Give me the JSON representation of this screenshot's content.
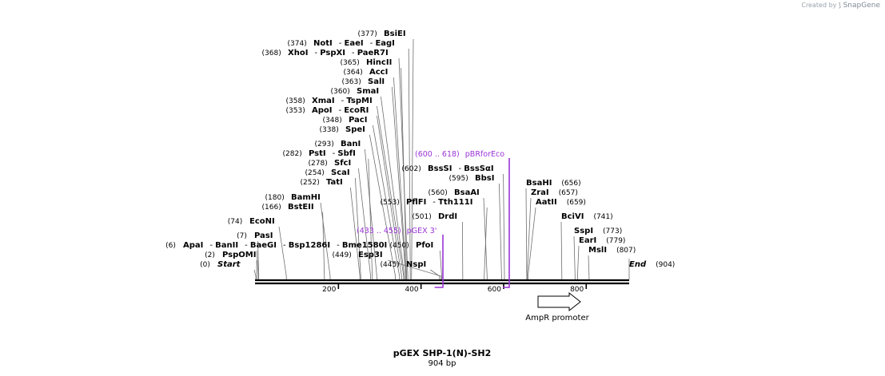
{
  "watermark": {
    "created_by": "Created by",
    "brand": "SnapGene"
  },
  "plasmid": {
    "name": "pGEX SHP-1(N)-SH2",
    "size_label": "904 bp",
    "length_bp": 904
  },
  "colors": {
    "backbone": "#000000",
    "site_line": "#6e6e6e",
    "primer": "#9a34d6",
    "feature": "#000000"
  },
  "axis_ticks": [
    {
      "label": "200",
      "bp": 200
    },
    {
      "label": "400",
      "bp": 400
    },
    {
      "label": "600",
      "bp": 600
    },
    {
      "label": "800",
      "bp": 800
    }
  ],
  "site_groups": [
    {
      "pos": "(6)",
      "pos_bp": 6,
      "enzymes": [
        "ApaI",
        "BanII",
        "BaeGI",
        "Bsp1286I",
        "Bme1580I"
      ]
    },
    {
      "pos": "(7)",
      "pos_bp": 7,
      "enzymes": [
        "PasI"
      ]
    },
    {
      "pos": "(2)",
      "pos_bp": 2,
      "enzymes": [
        "PspOMI"
      ]
    },
    {
      "pos": "(0)",
      "pos_bp": 0,
      "enzymes": [
        "Start"
      ],
      "italic": true
    },
    {
      "pos": "(74)",
      "pos_bp": 74,
      "enzymes": [
        "EcoNI"
      ]
    },
    {
      "pos": "(166)",
      "pos_bp": 166,
      "enzymes": [
        "BstEII"
      ]
    },
    {
      "pos": "(180)",
      "pos_bp": 180,
      "enzymes": [
        "BamHI"
      ]
    },
    {
      "pos": "(252)",
      "pos_bp": 252,
      "enzymes": [
        "TatI"
      ]
    },
    {
      "pos": "(254)",
      "pos_bp": 254,
      "enzymes": [
        "ScaI"
      ]
    },
    {
      "pos": "(278)",
      "pos_bp": 278,
      "enzymes": [
        "SfcI"
      ]
    },
    {
      "pos": "(282)",
      "pos_bp": 282,
      "enzymes": [
        "PstI",
        "SbfI"
      ]
    },
    {
      "pos": "(293)",
      "pos_bp": 293,
      "enzymes": [
        "BanI"
      ]
    },
    {
      "pos": "(338)",
      "pos_bp": 338,
      "enzymes": [
        "SpeI"
      ]
    },
    {
      "pos": "(348)",
      "pos_bp": 348,
      "enzymes": [
        "PacI"
      ]
    },
    {
      "pos": "(353)",
      "pos_bp": 353,
      "enzymes": [
        "ApoI",
        "EcoRI"
      ]
    },
    {
      "pos": "(358)",
      "pos_bp": 358,
      "enzymes": [
        "XmaI",
        "TspMI"
      ]
    },
    {
      "pos": "(360)",
      "pos_bp": 360,
      "enzymes": [
        "SmaI"
      ]
    },
    {
      "pos": "(363)",
      "pos_bp": 363,
      "enzymes": [
        "SalI"
      ]
    },
    {
      "pos": "(364)",
      "pos_bp": 364,
      "enzymes": [
        "AccI"
      ]
    },
    {
      "pos": "(365)",
      "pos_bp": 365,
      "enzymes": [
        "HincII"
      ]
    },
    {
      "pos": "(368)",
      "pos_bp": 368,
      "enzymes": [
        "XhoI",
        "PspXI",
        "PaeR7I"
      ]
    },
    {
      "pos": "(374)",
      "pos_bp": 374,
      "enzymes": [
        "NotI",
        "EaeI",
        "EagI"
      ]
    },
    {
      "pos": "(377)",
      "pos_bp": 377,
      "enzymes": [
        "BsiEI"
      ]
    },
    {
      "pos": "(449)",
      "pos_bp": 449,
      "enzymes": [
        "Esp3I"
      ]
    },
    {
      "pos": "(450)",
      "pos_bp": 450,
      "enzymes": [
        "PfoI"
      ]
    },
    {
      "pos": "(445)",
      "pos_bp": 445,
      "enzymes": [
        "NspI"
      ]
    },
    {
      "pos": "(501)",
      "pos_bp": 501,
      "enzymes": [
        "DrdI"
      ]
    },
    {
      "pos": "(553)",
      "pos_bp": 553,
      "enzymes": [
        "PflFI",
        "Tth111I"
      ]
    },
    {
      "pos": "(560)",
      "pos_bp": 560,
      "enzymes": [
        "BsaAI"
      ]
    },
    {
      "pos": "(595)",
      "pos_bp": 595,
      "enzymes": [
        "BbsI"
      ]
    },
    {
      "pos": "(602)",
      "pos_bp": 602,
      "enzymes": [
        "BssSI",
        "BssSαI"
      ]
    },
    {
      "pos": "(656)",
      "pos_bp": 656,
      "enzymes": [
        "BsaHI"
      ]
    },
    {
      "pos": "(657)",
      "pos_bp": 657,
      "enzymes": [
        "ZraI"
      ]
    },
    {
      "pos": "(659)",
      "pos_bp": 659,
      "enzymes": [
        "AatII"
      ]
    },
    {
      "pos": "(741)",
      "pos_bp": 741,
      "enzymes": [
        "BciVI"
      ]
    },
    {
      "pos": "(773)",
      "pos_bp": 773,
      "enzymes": [
        "SspI"
      ]
    },
    {
      "pos": "(779)",
      "pos_bp": 779,
      "enzymes": [
        "EarI"
      ]
    },
    {
      "pos": "(807)",
      "pos_bp": 807,
      "enzymes": [
        "MslI"
      ]
    },
    {
      "pos": "(904)",
      "pos_bp": 904,
      "enzymes": [
        "End"
      ],
      "italic": true
    }
  ],
  "primers": [
    {
      "range": "(433 .. 455)",
      "name": "pGEX 3'",
      "start_bp": 433,
      "end_bp": 455
    },
    {
      "range": "(600 .. 618)",
      "name": "pBRforEco",
      "start_bp": 600,
      "end_bp": 618
    }
  ],
  "features": [
    {
      "name": "AmpR promoter",
      "start_bp": 687,
      "end_bp": 791,
      "direction": "forward"
    }
  ]
}
